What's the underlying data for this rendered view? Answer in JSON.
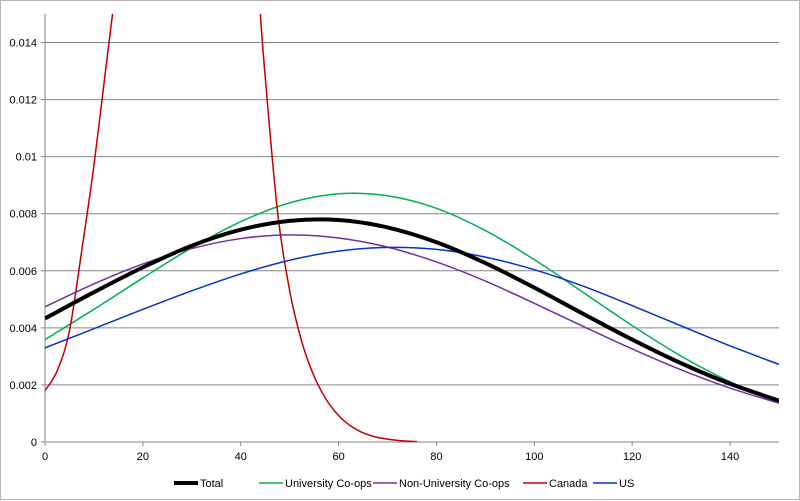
{
  "chart_data": {
    "type": "line",
    "title": "",
    "xlabel": "",
    "ylabel": "",
    "xlim": [
      0,
      150
    ],
    "ylim": [
      0,
      0.015
    ],
    "x_ticks": [
      0,
      20,
      40,
      60,
      80,
      100,
      120,
      140
    ],
    "y_ticks": [
      0,
      0.002,
      0.004,
      0.006,
      0.008,
      0.01,
      0.012,
      0.014
    ],
    "x_tick_labels": [
      "0",
      "20",
      "40",
      "60",
      "80",
      "100",
      "120",
      "140"
    ],
    "y_tick_labels": [
      "0",
      "0.002",
      "0.004",
      "0.006",
      "0.008",
      "0.01",
      "0.012",
      "0.014"
    ],
    "grid": "horizontal",
    "legend_position": "bottom",
    "series": [
      {
        "name": "Total",
        "color": "#000000",
        "x": [
          0,
          10,
          20,
          30,
          40,
          50,
          60,
          70,
          80,
          90,
          100,
          110,
          120,
          130,
          140,
          150
        ],
        "y": [
          0.00433,
          0.00525,
          0.00612,
          0.00688,
          0.00744,
          0.00775,
          0.00778,
          0.00752,
          0.007,
          0.00627,
          0.00541,
          0.00449,
          0.00359,
          0.00276,
          0.00204,
          0.00145
        ]
      },
      {
        "name": "University Co-ops",
        "color": "#00b050",
        "x": [
          0,
          10,
          20,
          30,
          40,
          50,
          60,
          70,
          80,
          90,
          100,
          110,
          120,
          130,
          140,
          150
        ],
        "y": [
          0.00359,
          0.00465,
          0.00575,
          0.00681,
          0.00772,
          0.00838,
          0.0087,
          0.00863,
          0.00819,
          0.00741,
          0.00639,
          0.00524,
          0.00408,
          0.00301,
          0.00211,
          0.0014
        ]
      },
      {
        "name": "Non-University Co-ops",
        "color": "#7030a0",
        "x": [
          0,
          10,
          20,
          30,
          40,
          50,
          60,
          70,
          80,
          90,
          100,
          110,
          120,
          130,
          140,
          150
        ],
        "y": [
          0.00474,
          0.00554,
          0.00624,
          0.00678,
          0.00713,
          0.00726,
          0.00715,
          0.00683,
          0.00631,
          0.00564,
          0.00486,
          0.00405,
          0.00326,
          0.00253,
          0.00189,
          0.00136
        ]
      },
      {
        "name": "Canada",
        "color": "#c00000",
        "x": [
          0,
          2.5,
          5,
          7.5,
          10,
          12.5,
          13.8,
          44,
          45,
          47.5,
          50,
          52.5,
          55,
          57.5,
          60,
          62.5,
          65,
          67.5,
          70,
          72.5,
          75,
          76
        ],
        "y": [
          0.0018,
          0.0025,
          0.0039,
          0.0067,
          0.0097,
          0.0132,
          0.015,
          0.015,
          0.0128,
          0.0081,
          0.0053,
          0.0035,
          0.0023,
          0.00148,
          0.00093,
          0.00056,
          0.00032,
          0.00018,
          0.0001,
          5e-05,
          2e-05,
          1e-05
        ]
      },
      {
        "name": "US",
        "color": "#0033cc",
        "x": [
          0,
          10,
          20,
          30,
          40,
          50,
          60,
          70,
          80,
          90,
          100,
          110,
          120,
          130,
          140,
          150
        ],
        "y": [
          0.0033,
          0.00397,
          0.00465,
          0.0053,
          0.00589,
          0.00637,
          0.00669,
          0.00682,
          0.00675,
          0.00648,
          0.00604,
          0.00546,
          0.00478,
          0.00407,
          0.00337,
          0.00272
        ]
      }
    ]
  }
}
